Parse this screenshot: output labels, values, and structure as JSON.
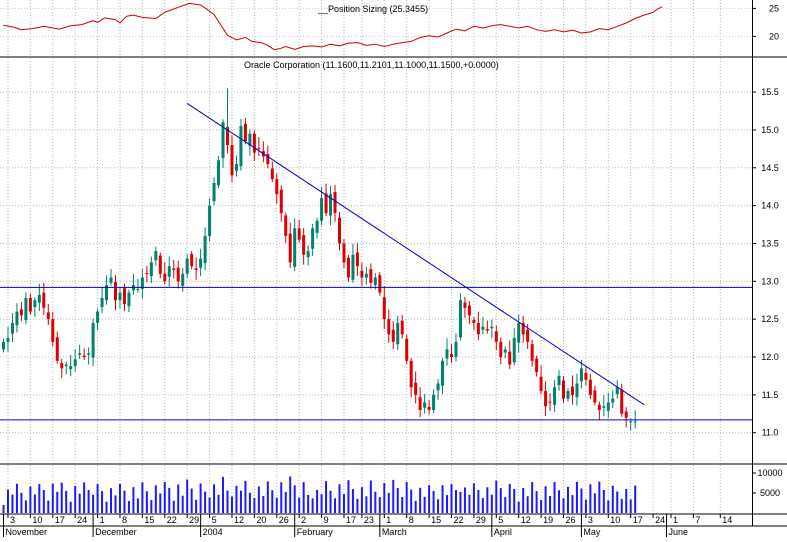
{
  "indicator": {
    "title": "__Position Sizing (25.3455)",
    "y_ticks": [
      20,
      25
    ],
    "ylim": [
      16.5,
      26.5
    ],
    "color": "#cc0000",
    "x": [
      0,
      5,
      8,
      13,
      18,
      22,
      25,
      30,
      35,
      40,
      42,
      45,
      50,
      52,
      55,
      58,
      62,
      68,
      72,
      74,
      78,
      83,
      88,
      91,
      94,
      100,
      104,
      108,
      111,
      115,
      118,
      121,
      124,
      126,
      130,
      134,
      138,
      142,
      146,
      150,
      154,
      158,
      162,
      166,
      170,
      174,
      178,
      182,
      186,
      190,
      194,
      198,
      202,
      206,
      210,
      214,
      218,
      222,
      226,
      230,
      234,
      238,
      242,
      246,
      250,
      254,
      258,
      262,
      266,
      270,
      274,
      278,
      282,
      286,
      290,
      292,
      294
    ],
    "values": [
      22.0,
      21.6,
      21.2,
      21.4,
      21.8,
      21.5,
      21.3,
      21.9,
      22.1,
      22.8,
      22.5,
      23.3,
      23.0,
      22.4,
      23.6,
      23.8,
      23.4,
      23.2,
      24.3,
      24.6,
      25.2,
      25.9,
      25.6,
      24.8,
      23.9,
      20.2,
      19.4,
      19.8,
      19.1,
      18.9,
      18.4,
      17.6,
      17.9,
      18.2,
      17.7,
      18.2,
      18.3,
      18.1,
      18.6,
      18.3,
      18.8,
      18.9,
      18.4,
      18.6,
      18.2,
      18.6,
      18.9,
      19.1,
      19.8,
      20.1,
      19.9,
      20.6,
      21.3,
      21.0,
      21.8,
      21.5,
      21.9,
      22.1,
      21.8,
      21.5,
      21.8,
      21.2,
      20.9,
      21.2,
      20.8,
      21.1,
      20.6,
      20.8,
      21.4,
      21.2,
      21.8,
      22.4,
      23.2,
      23.8,
      24.3,
      24.9,
      25.3
    ]
  },
  "price": {
    "title": "Oracle Corporation (11.1600,11.2101,11.1000,11.1500,+0.0000)",
    "y_ticks": [
      "11.0",
      "11.5",
      "12.0",
      "12.5",
      "13.0",
      "13.5",
      "14.0",
      "14.5",
      "15.0",
      "15.5"
    ],
    "y_tick_values": [
      11.0,
      11.5,
      12.0,
      12.5,
      13.0,
      13.5,
      14.0,
      14.5,
      15.0,
      15.5
    ],
    "ylim": [
      10.6,
      15.95
    ],
    "up_color": "#00806e",
    "down_color": "#dd0000",
    "resistance_trendline": {
      "from": [
        82,
        15.35
      ],
      "to": [
        286,
        11.37
      ]
    },
    "horizontal_lines": [
      12.92,
      11.17
    ]
  },
  "volume": {
    "y_ticks": [
      "5000",
      "10000"
    ],
    "y_tick_values": [
      5000,
      10000
    ],
    "ylim": [
      0,
      12000
    ],
    "color": "#1a1aff"
  },
  "x_axis": {
    "day_ticks": [
      {
        "x": 1,
        "label": "3"
      },
      {
        "x": 6,
        "label": "10"
      },
      {
        "x": 11,
        "label": "17"
      },
      {
        "x": 16,
        "label": "24"
      },
      {
        "x": 21,
        "label": "1"
      },
      {
        "x": 26,
        "label": "8"
      },
      {
        "x": 31,
        "label": "15"
      },
      {
        "x": 36,
        "label": "22"
      },
      {
        "x": 41,
        "label": "29"
      },
      {
        "x": 46,
        "label": "5"
      },
      {
        "x": 51,
        "label": "12"
      },
      {
        "x": 56,
        "label": "20"
      },
      {
        "x": 61,
        "label": "26"
      },
      {
        "x": 66,
        "label": "2"
      },
      {
        "x": 71,
        "label": "9"
      },
      {
        "x": 76,
        "label": "17"
      },
      {
        "x": 80,
        "label": "23"
      },
      {
        "x": 85,
        "label": "1"
      },
      {
        "x": 90,
        "label": "8"
      },
      {
        "x": 95,
        "label": "15"
      },
      {
        "x": 100,
        "label": "22"
      },
      {
        "x": 105,
        "label": "29"
      },
      {
        "x": 110,
        "label": "5"
      },
      {
        "x": 115,
        "label": "12"
      },
      {
        "x": 120,
        "label": "19"
      },
      {
        "x": 125,
        "label": "26"
      },
      {
        "x": 130,
        "label": "3"
      },
      {
        "x": 135,
        "label": "10"
      },
      {
        "x": 140,
        "label": "17"
      },
      {
        "x": 145,
        "label": "24"
      },
      {
        "x": 149,
        "label": "1"
      },
      {
        "x": 154,
        "label": "7"
      },
      {
        "x": 160,
        "label": "14"
      }
    ],
    "month_labels": [
      {
        "x": 0,
        "label": "November"
      },
      {
        "x": 20,
        "label": "December"
      },
      {
        "x": 44,
        "label": "2004"
      },
      {
        "x": 65,
        "label": "February"
      },
      {
        "x": 84,
        "label": "March"
      },
      {
        "x": 109,
        "label": "April"
      },
      {
        "x": 129,
        "label": "May"
      },
      {
        "x": 148,
        "label": "June"
      }
    ]
  },
  "chart_data": {
    "type": "candlestick",
    "title": "Oracle Corporation (11.1600,11.2101,11.1000,11.1500,+0.0000)",
    "x_unit": "trading-day index (0 = first visible session, early November 2003)",
    "ylim": [
      10.6,
      15.95
    ],
    "closes": [
      12.2,
      12.25,
      12.45,
      12.6,
      12.55,
      12.78,
      12.6,
      12.75,
      12.82,
      12.65,
      12.5,
      12.2,
      11.95,
      11.85,
      11.9,
      11.88,
      11.97,
      12.05,
      12.0,
      12.05,
      12.45,
      12.6,
      12.78,
      12.95,
      13.05,
      12.75,
      12.85,
      12.7,
      12.85,
      12.95,
      12.9,
      13.05,
      13.1,
      13.25,
      13.4,
      13.1,
      13.0,
      13.2,
      13.15,
      13.0,
      13.1,
      13.3,
      13.2,
      13.15,
      13.3,
      13.6,
      14.0,
      14.3,
      14.6,
      15.1,
      14.8,
      14.4,
      14.55,
      15.05,
      14.85,
      14.95,
      14.7,
      14.75,
      14.65,
      14.55,
      14.35,
      14.15,
      13.9,
      13.6,
      13.25,
      13.7,
      13.55,
      13.35,
      13.4,
      13.7,
      13.8,
      14.1,
      13.9,
      14.15,
      13.9,
      13.5,
      13.25,
      13.05,
      13.35,
      13.2,
      13.05,
      13.1,
      12.98,
      13.05,
      12.85,
      12.5,
      12.3,
      12.2,
      12.45,
      12.3,
      11.95,
      11.6,
      11.5,
      11.3,
      11.4,
      11.3,
      11.5,
      11.65,
      11.95,
      12.1,
      12.0,
      12.2,
      12.75,
      12.65,
      12.55,
      12.45,
      12.3,
      12.4,
      12.35,
      12.4,
      12.2,
      12.0,
      12.1,
      11.9,
      12.25,
      12.45,
      12.3,
      12.2,
      11.95,
      11.8,
      11.55,
      11.35,
      11.4,
      11.6,
      11.75,
      11.45,
      11.55,
      11.5,
      11.65,
      11.85,
      11.7,
      11.5,
      11.4,
      11.3,
      11.35,
      11.4,
      11.45,
      11.6,
      11.25,
      11.2,
      11.15,
      11.15
    ]
  }
}
